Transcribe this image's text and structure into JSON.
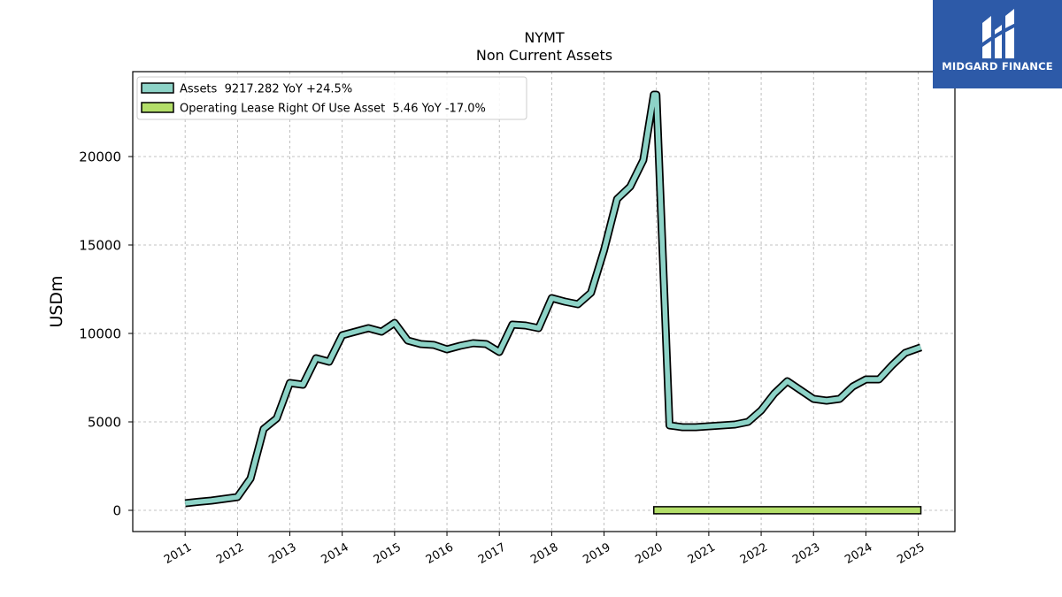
{
  "chart_data": {
    "type": "line",
    "title": "NYMT",
    "subtitle": "Non Current  Assets",
    "ylabel": "USDm",
    "xlabel": "",
    "ylim": [
      -1200,
      24800
    ],
    "xlim": [
      2010.0,
      2025.7
    ],
    "yticks": [
      0,
      5000,
      10000,
      15000,
      20000
    ],
    "xticks": [
      "2011",
      "2012",
      "2013",
      "2014",
      "2015",
      "2016",
      "2017",
      "2018",
      "2019",
      "2020",
      "2021",
      "2022",
      "2023",
      "2024",
      "2025"
    ],
    "grid": true,
    "legend_position": "top-left",
    "series": [
      {
        "name": "Assets  9217.282 YoY +24.5%",
        "color": "#8dd3c7",
        "x": [
          2011.0,
          2011.25,
          2011.5,
          2011.75,
          2012.0,
          2012.25,
          2012.5,
          2012.75,
          2013.0,
          2013.25,
          2013.5,
          2013.75,
          2014.0,
          2014.25,
          2014.5,
          2014.75,
          2015.0,
          2015.25,
          2015.5,
          2015.75,
          2016.0,
          2016.25,
          2016.5,
          2016.75,
          2017.0,
          2017.25,
          2017.5,
          2017.75,
          2018.0,
          2018.25,
          2018.5,
          2018.75,
          2019.0,
          2019.25,
          2019.5,
          2019.75,
          2019.95,
          2020.0,
          2020.25,
          2020.5,
          2020.75,
          2021.0,
          2021.25,
          2021.5,
          2021.75,
          2022.0,
          2022.25,
          2022.5,
          2022.75,
          2023.0,
          2023.25,
          2023.5,
          2023.75,
          2024.0,
          2024.25,
          2024.5,
          2024.75,
          2025.05
        ],
        "values": [
          400,
          480,
          550,
          650,
          750,
          1800,
          4600,
          5200,
          7200,
          7100,
          8600,
          8400,
          9900,
          10100,
          10300,
          10100,
          10600,
          9600,
          9400,
          9350,
          9100,
          9300,
          9450,
          9400,
          8950,
          10500,
          10450,
          10300,
          12000,
          11800,
          11650,
          12300,
          14700,
          17600,
          18300,
          19800,
          23500,
          23500,
          4800,
          4700,
          4700,
          4750,
          4800,
          4850,
          5000,
          5650,
          6600,
          7300,
          6800,
          6300,
          6200,
          6300,
          7000,
          7400,
          7400,
          8200,
          8900,
          9217.282
        ]
      },
      {
        "name": "Operating Lease Right Of Use Asset  5.46 YoY -17.0%",
        "color": "#b3de69",
        "x": [
          2019.95,
          2025.05
        ],
        "values": [
          5.46,
          5.46
        ]
      }
    ]
  },
  "logo": {
    "text": "MIDGARD FINANCE"
  }
}
